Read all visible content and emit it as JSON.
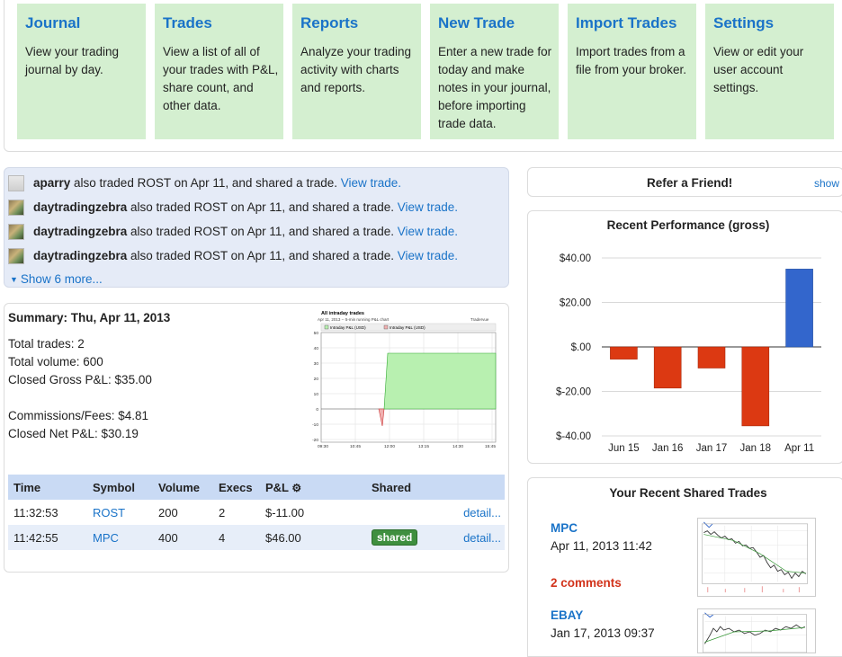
{
  "nav": [
    {
      "title": "Journal",
      "desc": "View your trading journal by day."
    },
    {
      "title": "Trades",
      "desc": "View a list of all of your trades with P&L, share count, and other data."
    },
    {
      "title": "Reports",
      "desc": "Analyze your trading activity with charts and reports."
    },
    {
      "title": "New Trade",
      "desc": "Enter a new trade for today and make notes in your journal, before importing trade data."
    },
    {
      "title": "Import Trades",
      "desc": "Import trades from a file from your broker."
    },
    {
      "title": "Settings",
      "desc": "View or edit your user account settings."
    }
  ],
  "feed": {
    "items": [
      {
        "user": "aparry",
        "text": " also traded ROST on Apr 11, and shared a trade. ",
        "link": "View trade."
      },
      {
        "user": "daytradingzebra",
        "text": " also traded ROST on Apr 11, and shared a trade. ",
        "link": "View trade."
      },
      {
        "user": "daytradingzebra",
        "text": " also traded ROST on Apr 11, and shared a trade. ",
        "link": "View trade."
      },
      {
        "user": "daytradingzebra",
        "text": " also traded ROST on Apr 11, and shared a trade. ",
        "link": "View trade."
      }
    ],
    "show_more": "Show 6 more..."
  },
  "summary": {
    "title": "Summary: Thu, Apr 11, 2013",
    "total_trades": "Total trades: 2",
    "total_volume": "Total volume: 600",
    "closed_gross": "Closed Gross P&L: $35.00",
    "commissions": "Commissions/Fees: $4.81",
    "closed_net": "Closed Net P&L: $30.19"
  },
  "intraday_chart": {
    "title": "All intraday trades",
    "subtitle": "Apr 11, 2013 -- 5-min running P&L chart",
    "brand": "Tradervue",
    "legend": [
      "Intraday P&L (USD)",
      "Intraday P&L (USD)"
    ],
    "y_ticks": [
      "50",
      "40",
      "30",
      "20",
      "10",
      "0",
      "-10",
      "-20"
    ],
    "x_ticks": [
      "09:30",
      "10:45",
      "12:00",
      "13:15",
      "14:30",
      "15:45"
    ]
  },
  "trades_table": {
    "headers": {
      "time": "Time",
      "symbol": "Symbol",
      "volume": "Volume",
      "execs": "Execs",
      "pnl": "P&L",
      "shared": "Shared"
    },
    "gear_icon": "gear-icon",
    "rows": [
      {
        "time": "11:32:53",
        "symbol": "ROST",
        "volume": "200",
        "execs": "2",
        "pnl": "$-11.00",
        "shared": "",
        "detail": "detail..."
      },
      {
        "time": "11:42:55",
        "symbol": "MPC",
        "volume": "400",
        "execs": "4",
        "pnl": "$46.00",
        "shared": "shared",
        "detail": "detail..."
      }
    ]
  },
  "refer": {
    "title": "Refer a Friend!",
    "show": "show"
  },
  "performance": {
    "title": "Recent Performance (gross)"
  },
  "chart_data": {
    "type": "bar",
    "title": "Recent Performance (gross)",
    "categories": [
      "Jun 15",
      "Jan 16",
      "Jan 17",
      "Jan 18",
      "Apr 11"
    ],
    "values": [
      -5.5,
      -18.5,
      -9.5,
      -35.5,
      35
    ],
    "y_ticks": [
      "$40.00",
      "$20.00",
      "$.00",
      "$-20.00",
      "$-40.00"
    ],
    "ylim": [
      -40,
      40
    ],
    "colors": {
      "negative": "#dc3912",
      "positive": "#3366cc"
    },
    "grid": true
  },
  "shared_trades": {
    "title": "Your Recent Shared Trades",
    "items": [
      {
        "symbol": "MPC",
        "date": "Apr 11, 2013 11:42",
        "comments": "2 comments"
      },
      {
        "symbol": "EBAY",
        "date": "Jan 17, 2013 09:37",
        "comments": ""
      }
    ]
  }
}
